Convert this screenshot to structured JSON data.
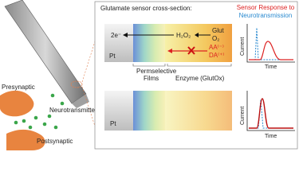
{
  "panel": {
    "title": "Glutamate sensor cross-section:",
    "response_title": "Sensor Response to",
    "response_subtitle": "Neurotransmission"
  },
  "upper_sensor": {
    "electrode": "Pt",
    "electrons": "2e⁻",
    "product": "H₂O₂",
    "substrate": "Glut",
    "cosubstrate": "O₂",
    "interferents": [
      "AA⁽⁻⁾",
      "DA⁽⁺⁾"
    ],
    "film_label": [
      "Permselective",
      "Films"
    ],
    "enzyme_label": "Enzyme (GlutOx)"
  },
  "lower_sensor": {
    "electrode": "Pt"
  },
  "graphs": [
    {
      "y_label": "Current",
      "x_label": "Time"
    },
    {
      "y_label": "Current",
      "x_label": "Time"
    }
  ],
  "neuron": {
    "presynaptic": "Presynaptic",
    "neurotransmitter": "Neurotransmitter",
    "postsynaptic": "Postsynaptic"
  }
}
